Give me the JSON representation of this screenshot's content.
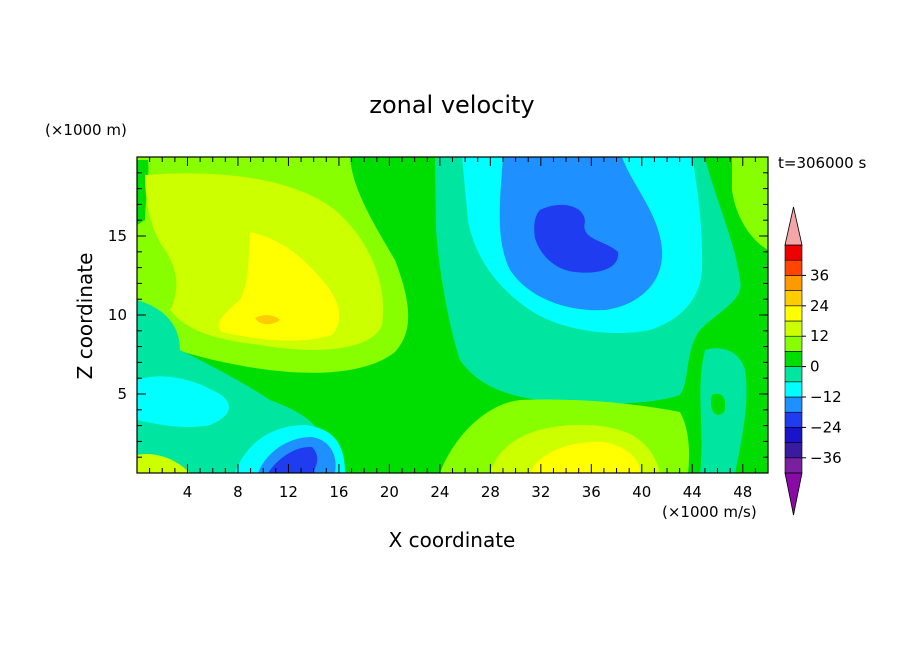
{
  "chart_data": {
    "type": "heatmap",
    "title": "zonal velocity",
    "xlabel": "X coordinate",
    "ylabel": "Z coordinate",
    "x_unit": "(×1000 m/s)",
    "y_unit": "(×1000 m)",
    "time_label": "t=306000 s",
    "xlim": [
      0,
      50
    ],
    "ylim": [
      0,
      20
    ],
    "x_ticks": [
      4,
      8,
      12,
      16,
      20,
      24,
      28,
      32,
      36,
      40,
      44,
      48
    ],
    "y_ticks": [
      5,
      10,
      15
    ],
    "colorbar": {
      "ticks": [
        36,
        24,
        12,
        0,
        -12,
        -24,
        -36
      ],
      "extend": "both",
      "levels": [
        {
          "range": [
            -42,
            -36
          ],
          "color": "#7a1fa0"
        },
        {
          "range": [
            -36,
            -30
          ],
          "color": "#3a1aa0"
        },
        {
          "range": [
            -30,
            -24
          ],
          "color": "#1a14c8"
        },
        {
          "range": [
            -24,
            -18
          ],
          "color": "#1f3cf0"
        },
        {
          "range": [
            -18,
            -12
          ],
          "color": "#1e90ff"
        },
        {
          "range": [
            -12,
            -6
          ],
          "color": "#00ffff"
        },
        {
          "range": [
            -6,
            0
          ],
          "color": "#00e6a0"
        },
        {
          "range": [
            0,
            6
          ],
          "color": "#00dd00"
        },
        {
          "range": [
            6,
            12
          ],
          "color": "#88ff00"
        },
        {
          "range": [
            12,
            18
          ],
          "color": "#ccff00"
        },
        {
          "range": [
            18,
            24
          ],
          "color": "#ffff00"
        },
        {
          "range": [
            24,
            30
          ],
          "color": "#ffcc00"
        },
        {
          "range": [
            30,
            36
          ],
          "color": "#ff9900"
        },
        {
          "range": [
            36,
            42
          ],
          "color": "#ff4400"
        },
        {
          "range": [
            42,
            48
          ],
          "color": "#ee0000"
        }
      ],
      "under_color": "#8a0aa8",
      "over_color": "#f4a6a6"
    },
    "field_features": [
      {
        "x": 35,
        "y": 14.5,
        "value": -26
      },
      {
        "x": 33,
        "y": 15.5,
        "value": -20
      },
      {
        "x": 36,
        "y": 12.5,
        "value": -14
      },
      {
        "x": 37,
        "y": 11,
        "value": -8
      },
      {
        "x": 11,
        "y": 9.5,
        "value": 22
      },
      {
        "x": 12,
        "y": 11,
        "value": 18
      },
      {
        "x": 8,
        "y": 16,
        "value": 12
      },
      {
        "x": 13,
        "y": 1.2,
        "value": -22
      },
      {
        "x": 14,
        "y": 0.8,
        "value": -14
      },
      {
        "x": 5,
        "y": 5,
        "value": -8
      },
      {
        "x": 33,
        "y": 1.5,
        "value": 20
      },
      {
        "x": 36,
        "y": 1,
        "value": 18
      },
      {
        "x": 23,
        "y": 7,
        "value": 2
      },
      {
        "x": 47,
        "y": 16,
        "value": 6
      },
      {
        "x": 2,
        "y": 1,
        "value": 12
      }
    ]
  }
}
